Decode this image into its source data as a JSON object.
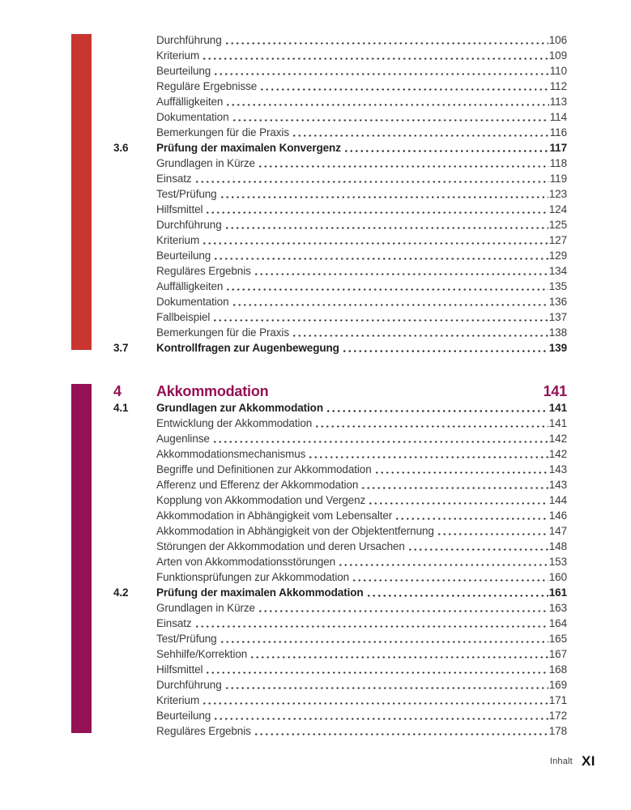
{
  "footer": {
    "label": "Inhalt",
    "page_number": "XI"
  },
  "colors": {
    "red_bar": "#C8362F",
    "purple_bar": "#941155",
    "body_text": "#3A3A38",
    "bold_text": "#1F1F1D"
  },
  "blocks": [
    {
      "name": "chapter-3",
      "bar_color": "#C8362F",
      "chapter": null,
      "entries": [
        {
          "num": "",
          "title": "Durchführung",
          "page": "106",
          "bold": false
        },
        {
          "num": "",
          "title": "Kriterium",
          "page": "109",
          "bold": false
        },
        {
          "num": "",
          "title": "Beurteilung",
          "page": "110",
          "bold": false
        },
        {
          "num": "",
          "title": "Reguläre Ergebnisse",
          "page": "112",
          "bold": false
        },
        {
          "num": "",
          "title": "Auffälligkeiten",
          "page": "113",
          "bold": false
        },
        {
          "num": "",
          "title": "Dokumentation",
          "page": "114",
          "bold": false
        },
        {
          "num": "",
          "title": "Bemerkungen für die Praxis",
          "page": "116",
          "bold": false
        },
        {
          "num": "3.6",
          "title": "Prüfung der maximalen Konvergenz",
          "page": "117",
          "bold": true
        },
        {
          "num": "",
          "title": "Grundlagen in Kürze",
          "page": "118",
          "bold": false
        },
        {
          "num": "",
          "title": "Einsatz",
          "page": "119",
          "bold": false
        },
        {
          "num": "",
          "title": "Test/Prüfung",
          "page": "123",
          "bold": false
        },
        {
          "num": "",
          "title": "Hilfsmittel",
          "page": "124",
          "bold": false
        },
        {
          "num": "",
          "title": "Durchführung",
          "page": "125",
          "bold": false
        },
        {
          "num": "",
          "title": "Kriterium",
          "page": "127",
          "bold": false
        },
        {
          "num": "",
          "title": "Beurteilung",
          "page": "129",
          "bold": false
        },
        {
          "num": "",
          "title": "Reguläres Ergebnis",
          "page": "134",
          "bold": false
        },
        {
          "num": "",
          "title": "Auffälligkeiten",
          "page": "135",
          "bold": false
        },
        {
          "num": "",
          "title": "Dokumentation",
          "page": "136",
          "bold": false
        },
        {
          "num": "",
          "title": "Fallbeispiel",
          "page": "137",
          "bold": false
        },
        {
          "num": "",
          "title": "Bemerkungen für die Praxis",
          "page": "138",
          "bold": false
        },
        {
          "num": "3.7",
          "title": "Kontrollfragen zur Augenbewegung",
          "page": "139",
          "bold": true
        }
      ]
    },
    {
      "name": "chapter-4",
      "bar_color": "#941155",
      "chapter": {
        "num": "4",
        "title": "Akkommodation",
        "page": "141"
      },
      "entries": [
        {
          "num": "4.1",
          "title": "Grundlagen zur Akkommodation",
          "page": "141",
          "bold": true
        },
        {
          "num": "",
          "title": "Entwicklung der Akkommodation",
          "page": "141",
          "bold": false
        },
        {
          "num": "",
          "title": "Augenlinse",
          "page": "142",
          "bold": false
        },
        {
          "num": "",
          "title": "Akkommodationsmechanismus",
          "page": "142",
          "bold": false
        },
        {
          "num": "",
          "title": "Begriffe und Definitionen zur Akkommodation",
          "page": "143",
          "bold": false
        },
        {
          "num": "",
          "title": "Afferenz und Efferenz der Akkommodation",
          "page": "143",
          "bold": false
        },
        {
          "num": "",
          "title": "Kopplung von Akkommodation und Vergenz",
          "page": "144",
          "bold": false
        },
        {
          "num": "",
          "title": "Akkommodation in Abhängigkeit vom Lebensalter",
          "page": "146",
          "bold": false
        },
        {
          "num": "",
          "title": "Akkommodation in Abhängigkeit von der Objektentfernung",
          "page": "147",
          "bold": false
        },
        {
          "num": "",
          "title": "Störungen der Akkommodation und deren Ursachen",
          "page": "148",
          "bold": false
        },
        {
          "num": "",
          "title": "Arten von Akkommodationsstörungen",
          "page": "153",
          "bold": false
        },
        {
          "num": "",
          "title": "Funktionsprüfungen zur Akkommodation",
          "page": "160",
          "bold": false
        },
        {
          "num": "4.2",
          "title": "Prüfung der maximalen Akkommodation",
          "page": "161",
          "bold": true
        },
        {
          "num": "",
          "title": "Grundlagen in Kürze",
          "page": "163",
          "bold": false
        },
        {
          "num": "",
          "title": "Einsatz",
          "page": "164",
          "bold": false
        },
        {
          "num": "",
          "title": "Test/Prüfung",
          "page": "165",
          "bold": false
        },
        {
          "num": "",
          "title": "Sehhilfe/Korrektion",
          "page": "167",
          "bold": false
        },
        {
          "num": "",
          "title": "Hilfsmittel",
          "page": "168",
          "bold": false
        },
        {
          "num": "",
          "title": "Durchführung",
          "page": "169",
          "bold": false
        },
        {
          "num": "",
          "title": "Kriterium",
          "page": "171",
          "bold": false
        },
        {
          "num": "",
          "title": "Beurteilung",
          "page": "172",
          "bold": false
        },
        {
          "num": "",
          "title": "Reguläres Ergebnis",
          "page": "178",
          "bold": false
        }
      ]
    }
  ]
}
